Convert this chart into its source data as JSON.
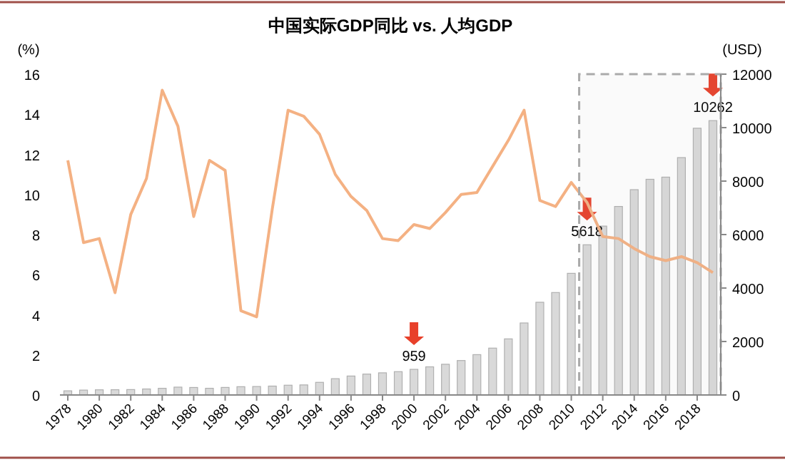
{
  "chart_data": {
    "type": "bar",
    "title": "中国实际GDP同比 vs. 人均GDP",
    "ylabel": "(%)",
    "y2label": "(USD)",
    "x": [
      1978,
      1979,
      1980,
      1981,
      1982,
      1983,
      1984,
      1985,
      1986,
      1987,
      1988,
      1989,
      1990,
      1991,
      1992,
      1993,
      1994,
      1995,
      1996,
      1997,
      1998,
      1999,
      2000,
      2001,
      2002,
      2003,
      2004,
      2005,
      2006,
      2007,
      2008,
      2009,
      2010,
      2011,
      2012,
      2013,
      2014,
      2015,
      2016,
      2017,
      2018,
      2019
    ],
    "series": [
      {
        "axis": "y2",
        "color": "#d9d9d9",
        "value_labels": [
          null,
          null,
          null,
          null,
          null,
          null,
          null,
          null,
          null,
          null,
          null,
          null,
          null,
          null,
          null,
          null,
          null,
          null,
          null,
          null,
          null,
          null,
          "959",
          null,
          null,
          null,
          null,
          null,
          null,
          null,
          null,
          null,
          null,
          "5618",
          null,
          null,
          null,
          null,
          null,
          null,
          null,
          "10262"
        ],
        "values": [
          156,
          183,
          194,
          197,
          203,
          225,
          250,
          294,
          281,
          251,
          283,
          310,
          317,
          333,
          366,
          377,
          473,
          610,
          709,
          782,
          829,
          873,
          959,
          1053,
          1149,
          1289,
          1509,
          1753,
          2099,
          2694,
          3468,
          3832,
          4550,
          5618,
          6317,
          7051,
          7679,
          8067,
          8148,
          8879,
          9977,
          10262
        ]
      },
      {
        "type": "line",
        "color": "#f4b183",
        "values": [
          11.7,
          7.6,
          7.8,
          5.1,
          9.0,
          10.8,
          15.2,
          13.4,
          8.9,
          11.7,
          11.2,
          4.2,
          3.9,
          9.3,
          14.2,
          13.9,
          13.0,
          11.0,
          9.9,
          9.2,
          7.8,
          7.7,
          8.5,
          8.3,
          9.1,
          10.0,
          10.1,
          11.4,
          12.7,
          14.2,
          9.7,
          9.4,
          10.6,
          9.6,
          7.9,
          7.8,
          7.3,
          6.9,
          6.7,
          6.9,
          6.6,
          6.1
        ]
      }
    ],
    "xlim": [
      1977.5,
      2019.5
    ],
    "xticks": [
      1978,
      1980,
      1982,
      1984,
      1986,
      1988,
      1990,
      1992,
      1994,
      1996,
      1998,
      2000,
      2002,
      2004,
      2006,
      2008,
      2010,
      2012,
      2014,
      2016,
      2018
    ],
    "ylim": [
      0,
      16
    ],
    "yticks": [
      0,
      2,
      4,
      6,
      8,
      10,
      12,
      14,
      16
    ],
    "y2lim": [
      0,
      12000
    ],
    "y2ticks": [
      0,
      2000,
      4000,
      6000,
      8000,
      10000,
      12000
    ],
    "bands": [
      {
        "axis": "x",
        "from": 2010.5,
        "to": 2019.5,
        "color": "#aaaaaa"
      }
    ],
    "grid": false
  }
}
